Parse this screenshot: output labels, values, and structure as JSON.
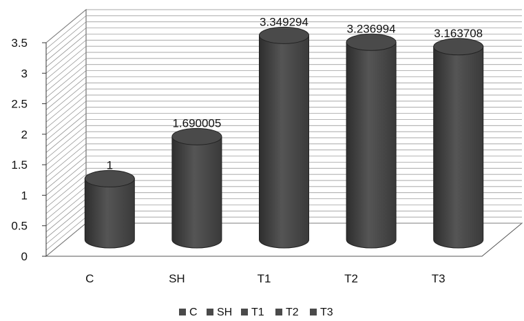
{
  "chart_data": {
    "type": "bar",
    "style": "3d-cylinder",
    "categories": [
      "C",
      "SH",
      "T1",
      "T2",
      "T3"
    ],
    "values": [
      1,
      1.690005,
      3.349294,
      3.236994,
      3.163708
    ],
    "data_labels": [
      "1",
      "1.690005",
      "3.349294",
      "3.236994",
      "3.163708"
    ],
    "ylim": [
      0,
      3.5
    ],
    "y_ticks": [
      "0",
      "0.5",
      "1",
      "1.5",
      "2",
      "2.5",
      "3",
      "3.5"
    ],
    "grid": true,
    "legend": {
      "placement": "bottom",
      "entries": [
        "C",
        "SH",
        "T1",
        "T2",
        "T3"
      ]
    },
    "colors": {
      "bar": "#4a4a4a",
      "bar_dark": "#2e2e2e",
      "bar_light": "#6a6a6a",
      "grid": "#8a8a8a",
      "text": "#111111"
    }
  }
}
